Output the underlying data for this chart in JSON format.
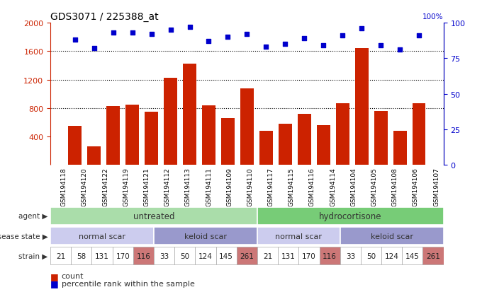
{
  "title": "GDS3071 / 225388_at",
  "samples": [
    "GSM194118",
    "GSM194120",
    "GSM194122",
    "GSM194119",
    "GSM194121",
    "GSM194112",
    "GSM194113",
    "GSM194111",
    "GSM194109",
    "GSM194110",
    "GSM194117",
    "GSM194115",
    "GSM194116",
    "GSM194114",
    "GSM194104",
    "GSM194105",
    "GSM194108",
    "GSM194106",
    "GSM194107"
  ],
  "counts": [
    550,
    260,
    830,
    850,
    750,
    1230,
    1420,
    840,
    660,
    1080,
    480,
    580,
    720,
    560,
    870,
    1640,
    760,
    480,
    870
  ],
  "percentiles": [
    88,
    82,
    93,
    93,
    92,
    95,
    97,
    87,
    90,
    92,
    83,
    85,
    89,
    84,
    91,
    96,
    84,
    81,
    91
  ],
  "ylim_left": [
    0,
    2000
  ],
  "ylim_right": [
    0,
    100
  ],
  "yticks_left": [
    400,
    800,
    1200,
    1600,
    2000
  ],
  "yticks_right": [
    0,
    25,
    50,
    75,
    100
  ],
  "bar_color": "#cc2200",
  "dot_color": "#0000cc",
  "agent_groups": [
    {
      "label": "untreated",
      "start": 0,
      "end": 10,
      "color": "#aaddaa"
    },
    {
      "label": "hydrocortisone",
      "start": 10,
      "end": 19,
      "color": "#77cc77"
    }
  ],
  "disease_groups": [
    {
      "label": "normal scar",
      "start": 0,
      "end": 5,
      "color": "#ccccee"
    },
    {
      "label": "keloid scar",
      "start": 5,
      "end": 10,
      "color": "#9999cc"
    },
    {
      "label": "normal scar",
      "start": 10,
      "end": 14,
      "color": "#ccccee"
    },
    {
      "label": "keloid scar",
      "start": 14,
      "end": 19,
      "color": "#9999cc"
    }
  ],
  "strain_values": [
    "21",
    "58",
    "131",
    "170",
    "116",
    "33",
    "50",
    "124",
    "145",
    "261",
    "21",
    "131",
    "170",
    "116",
    "33",
    "50",
    "124",
    "145",
    "261"
  ],
  "strain_highlight": [
    4,
    9,
    13,
    18
  ],
  "strain_color_normal": "#ffffff",
  "strain_color_highlight": "#cc7777",
  "background_color": "#ffffff",
  "label_agent": "agent",
  "label_disease": "disease state",
  "label_strain": "strain",
  "legend_count": "count",
  "legend_percentile": "percentile rank within the sample",
  "xtick_bg": "#dddddd"
}
